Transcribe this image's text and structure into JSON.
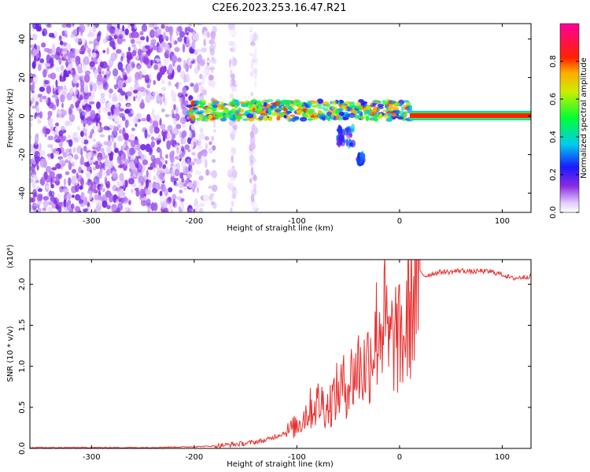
{
  "figure": {
    "title": "C2E6.2023.253.16.47.R21"
  },
  "chart_data": [
    {
      "type": "heatmap",
      "title": "C2E6.2023.253.16.47.R21",
      "xlabel": "Height of straight line (km)",
      "ylabel": "Frequency (Hz)",
      "xlim": [
        -360,
        128
      ],
      "ylim": [
        -50,
        48
      ],
      "x_ticks": [
        -300,
        -200,
        -100,
        0,
        100
      ],
      "y_ticks": [
        -40,
        -20,
        0,
        20,
        40
      ],
      "colorbar": {
        "label": "Normalized spectral amplitude",
        "range": [
          0.0,
          1.0
        ],
        "ticks": [
          0.0,
          0.2,
          0.4,
          0.6,
          0.8
        ]
      },
      "regions": [
        {
          "x": [
            -360,
            -200
          ],
          "freq": [
            -50,
            48
          ],
          "level": 0.12,
          "pattern": "diffuse noise"
        },
        {
          "x": [
            -200,
            -180
          ],
          "freq": [
            -50,
            48
          ],
          "level": 0.06,
          "pattern": "sparse noise"
        },
        {
          "x": [
            -165,
            -160
          ],
          "freq": [
            -50,
            48
          ],
          "level": 0.05,
          "pattern": "sparse stripe"
        },
        {
          "x": [
            -145,
            -140
          ],
          "freq": [
            -50,
            48
          ],
          "level": 0.05,
          "pattern": "sparse stripe"
        },
        {
          "x": [
            -205,
            10
          ],
          "freq": [
            -2,
            8
          ],
          "level": 0.5,
          "pattern": "carrier band"
        },
        {
          "x": [
            -60,
            -45
          ],
          "freq": [
            -15,
            -5
          ],
          "level": 0.35,
          "pattern": "carrier tail"
        },
        {
          "x": [
            -40,
            -35
          ],
          "freq": [
            -24,
            -20
          ],
          "level": 0.25,
          "pattern": "carrier tail"
        },
        {
          "x": [
            10,
            128
          ],
          "freq": [
            -1,
            1.5
          ],
          "level": 1.0,
          "pattern": "steady carrier"
        }
      ]
    },
    {
      "type": "line",
      "xlabel": "Height of straight line (km)",
      "ylabel": "SNR (10 * v/v)",
      "y_multiplier": "(x10⁴)",
      "xlim": [
        -360,
        128
      ],
      "ylim": [
        0,
        2.3
      ],
      "x_ticks": [
        -300,
        -200,
        -100,
        0,
        100
      ],
      "y_ticks": [
        0.0,
        0.5,
        1.0,
        1.5,
        2.0
      ],
      "series": [
        {
          "color": "#e8302f",
          "x": [
            -360,
            -300,
            -250,
            -200,
            -180,
            -160,
            -150,
            -140,
            -130,
            -120,
            -110,
            -100,
            -95,
            -90,
            -85,
            -80,
            -75,
            -70,
            -65,
            -60,
            -55,
            -50,
            -45,
            -40,
            -35,
            -30,
            -25,
            -20,
            -15,
            -10,
            -5,
            0,
            5,
            10,
            15,
            20,
            25,
            30,
            40,
            50,
            60,
            70,
            80,
            90,
            100,
            110,
            128
          ],
          "y": [
            0.01,
            0.01,
            0.01,
            0.02,
            0.03,
            0.05,
            0.06,
            0.08,
            0.1,
            0.15,
            0.2,
            0.28,
            0.35,
            0.45,
            0.5,
            0.55,
            0.55,
            0.5,
            0.6,
            0.7,
            0.75,
            0.8,
            0.9,
            1.0,
            0.95,
            1.1,
            1.3,
            1.5,
            1.6,
            1.2,
            1.4,
            1.3,
            1.35,
            1.7,
            2.0,
            2.15,
            2.1,
            2.12,
            2.15,
            2.15,
            2.17,
            2.15,
            2.16,
            2.15,
            2.12,
            2.07,
            2.1
          ]
        }
      ]
    }
  ]
}
